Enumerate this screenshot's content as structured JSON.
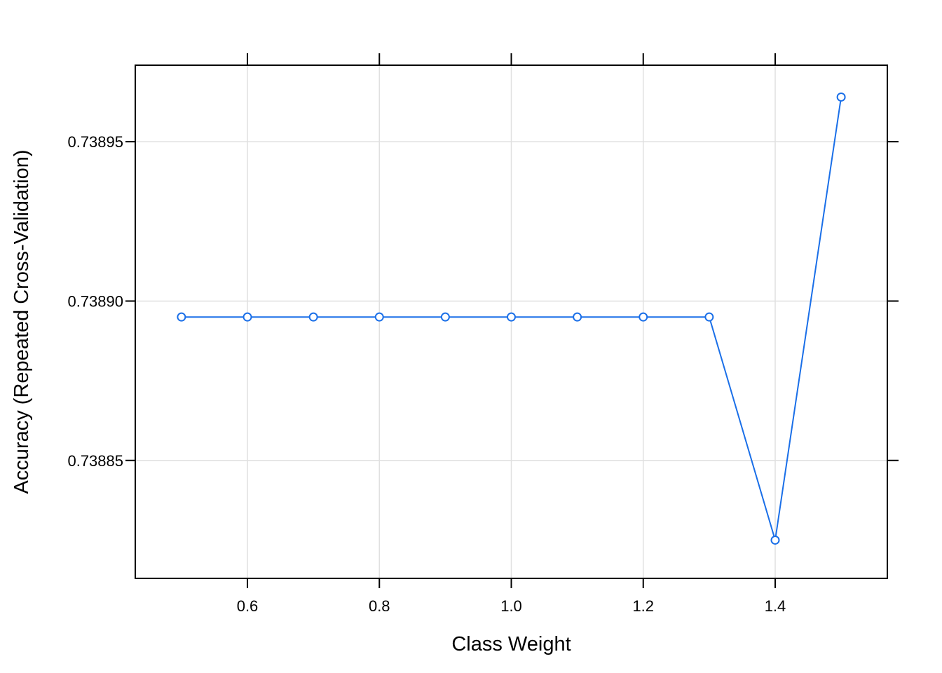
{
  "chart_data": {
    "type": "line",
    "title": "",
    "xlabel": "Class Weight",
    "ylabel": "Accuracy (Repeated Cross-Validation)",
    "x": [
      0.5,
      0.6,
      0.7,
      0.8,
      0.9,
      1.0,
      1.1,
      1.2,
      1.3,
      1.4,
      1.5
    ],
    "series": [
      {
        "values": [
          0.738895,
          0.738895,
          0.738895,
          0.738895,
          0.738895,
          0.738895,
          0.738895,
          0.738895,
          0.738895,
          0.738825,
          0.738964
        ],
        "color": "#1a6fe8",
        "marker": "open-circle"
      }
    ],
    "xlim": [
      0.43,
      1.57
    ],
    "ylim": [
      0.738813,
      0.738974
    ],
    "x_ticks": [
      0.6,
      0.8,
      1.0,
      1.2,
      1.4
    ],
    "x_tick_labels": [
      "0.6",
      "0.8",
      "1.0",
      "1.2",
      "1.4"
    ],
    "y_ticks": [
      0.73885,
      0.7389,
      0.73895
    ],
    "y_tick_labels": [
      "0.73885",
      "0.73890",
      "0.73895"
    ],
    "grid": true,
    "grid_color": "#e0e0e0",
    "legend": "none"
  }
}
